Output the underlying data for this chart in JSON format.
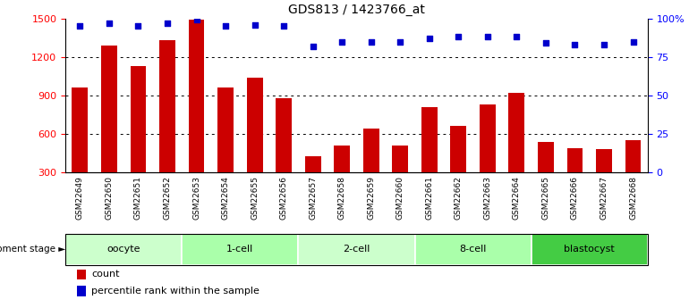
{
  "title": "GDS813 / 1423766_at",
  "samples": [
    "GSM22649",
    "GSM22650",
    "GSM22651",
    "GSM22652",
    "GSM22653",
    "GSM22654",
    "GSM22655",
    "GSM22656",
    "GSM22657",
    "GSM22658",
    "GSM22659",
    "GSM22660",
    "GSM22661",
    "GSM22662",
    "GSM22663",
    "GSM22664",
    "GSM22665",
    "GSM22666",
    "GSM22667",
    "GSM22668"
  ],
  "counts": [
    960,
    1290,
    1130,
    1330,
    1490,
    960,
    1040,
    880,
    430,
    510,
    640,
    510,
    810,
    660,
    830,
    920,
    540,
    490,
    480,
    550
  ],
  "percentile": [
    95,
    97,
    95,
    97,
    99,
    95,
    96,
    95,
    82,
    85,
    85,
    85,
    87,
    88,
    88,
    88,
    84,
    83,
    83,
    85
  ],
  "groups": [
    {
      "name": "oocyte",
      "start": 0,
      "end": 4,
      "color": "#ccffcc"
    },
    {
      "name": "1-cell",
      "start": 4,
      "end": 8,
      "color": "#aaffaa"
    },
    {
      "name": "2-cell",
      "start": 8,
      "end": 12,
      "color": "#ccffcc"
    },
    {
      "name": "8-cell",
      "start": 12,
      "end": 16,
      "color": "#aaffaa"
    },
    {
      "name": "blastocyst",
      "start": 16,
      "end": 20,
      "color": "#44cc44"
    }
  ],
  "bar_color": "#cc0000",
  "dot_color": "#0000cc",
  "ylim_left": [
    300,
    1500
  ],
  "ylim_right": [
    0,
    100
  ],
  "yticks_left": [
    300,
    600,
    900,
    1200,
    1500
  ],
  "yticks_right": [
    0,
    25,
    50,
    75,
    100
  ],
  "yticks_right_labels": [
    "0",
    "25",
    "50",
    "75",
    "100%"
  ],
  "grid_values": [
    600,
    900,
    1200
  ],
  "background_color": "#ffffff",
  "xticklabel_bg": "#cccccc",
  "dev_stage_label": "development stage ►"
}
